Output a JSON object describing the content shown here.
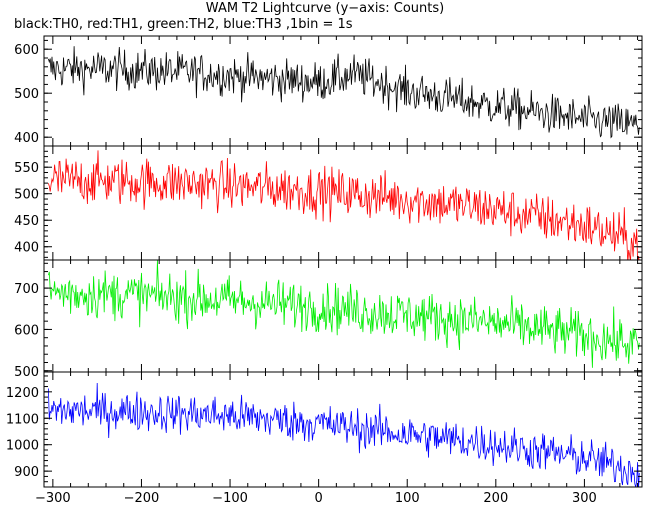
{
  "chart_data": {
    "type": "line",
    "title": "WAM T2 Lightcurve (y−axis: Counts)",
    "subtitle": "black:TH0, red:TH1, green:TH2, blue:TH3 ,1bin = 1s",
    "ylabel": "Counts",
    "xlim": [
      -310,
      365
    ],
    "x_ticks": [
      -300,
      -200,
      -100,
      0,
      100,
      200,
      300
    ],
    "x_tick_labels": [
      "−300",
      "−200",
      "−100",
      "0",
      "100",
      "200",
      "300"
    ],
    "panels": [
      {
        "series": "TH0",
        "color": "#000000",
        "ylim": [
          380,
          630
        ],
        "y_ticks": [
          400,
          500,
          600
        ],
        "y_tick_labels": [
          "400",
          "500",
          "600"
        ],
        "trend_x": [
          -310,
          -250,
          -150,
          0,
          40,
          100,
          200,
          300,
          365
        ],
        "trend_y": [
          555,
          555,
          548,
          525,
          542,
          505,
          470,
          440,
          425
        ],
        "noise": 23
      },
      {
        "series": "TH1",
        "color": "#ff0000",
        "ylim": [
          375,
          590
        ],
        "y_ticks": [
          400,
          450,
          500,
          550
        ],
        "y_tick_labels": [
          "400",
          "450",
          "500",
          "550"
        ],
        "trend_x": [
          -310,
          -250,
          -150,
          0,
          100,
          200,
          300,
          365
        ],
        "trend_y": [
          525,
          525,
          520,
          505,
          490,
          470,
          440,
          405
        ],
        "noise": 23
      },
      {
        "series": "TH2",
        "color": "#00ee00",
        "ylim": [
          497,
          768
        ],
        "y_ticks": [
          500,
          600,
          700
        ],
        "y_tick_labels": [
          "500",
          "600",
          "700"
        ],
        "trend_x": [
          -310,
          -200,
          -100,
          0,
          100,
          200,
          300,
          365
        ],
        "trend_y": [
          690,
          683,
          670,
          655,
          635,
          615,
          585,
          560
        ],
        "noise": 30
      },
      {
        "series": "TH3",
        "color": "#0000ff",
        "ylim": [
          840,
          1275
        ],
        "y_ticks": [
          900,
          1000,
          1100,
          1200
        ],
        "y_tick_labels": [
          "900",
          "1000",
          "1100",
          "1200"
        ],
        "trend_x": [
          -310,
          -200,
          -100,
          0,
          100,
          200,
          300,
          365
        ],
        "trend_y": [
          1130,
          1125,
          1110,
          1080,
          1040,
          1000,
          950,
          895
        ],
        "noise": 38
      }
    ]
  }
}
